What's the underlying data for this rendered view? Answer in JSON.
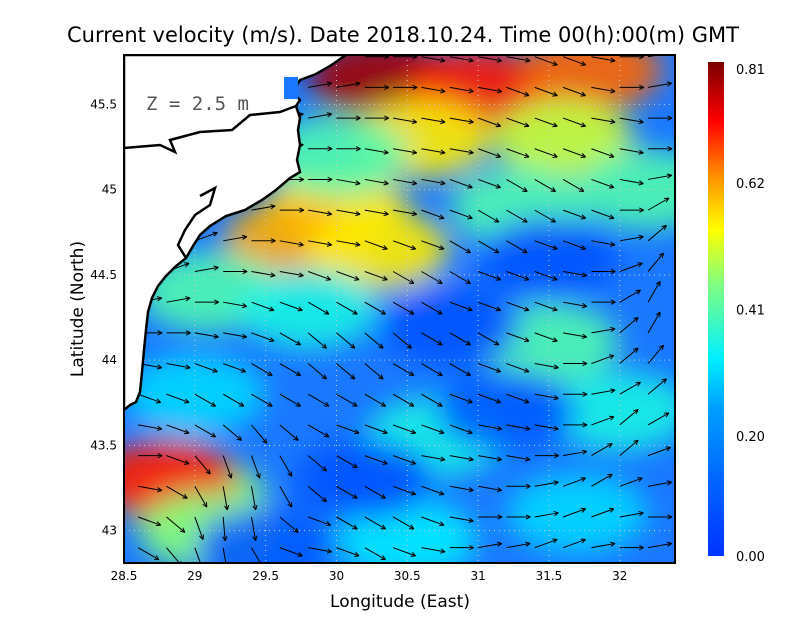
{
  "chart_data": {
    "type": "heatmap",
    "title": "Current velocity (m/s). Date 2018.10.24. Time 00(h):00(m) GMT",
    "xlabel": "Longitude (East)",
    "ylabel": "Latitude (North)",
    "annotation": "Z = 2.5 m",
    "xlim": [
      28.5,
      32.39
    ],
    "ylim": [
      42.81,
      45.79
    ],
    "xticks": [
      28.5,
      29,
      29.5,
      30,
      30.5,
      31,
      31.5,
      32
    ],
    "xtick_labels": [
      "28.5",
      "29",
      "29.5",
      "30",
      "30.5",
      "31",
      "31.5",
      "32"
    ],
    "yticks": [
      43,
      43.5,
      44,
      44.5,
      45,
      45.5
    ],
    "ytick_labels": [
      "43",
      "43.5",
      "44",
      "44.5",
      "45",
      "45.5"
    ],
    "grid": true,
    "colorbar": {
      "range": [
        0,
        0.81
      ],
      "ticks": [
        0.81,
        0.62,
        0.41,
        0.2,
        0.0
      ],
      "tick_labels": [
        "0.81",
        "0.62",
        "0.41",
        "0.20",
        "0.00"
      ],
      "colors": [
        "#0033ff",
        "#0080ff",
        "#00e5ff",
        "#7fff7f",
        "#ffff00",
        "#ff8000",
        "#ff0000",
        "#800000"
      ]
    },
    "speed_regions": [
      {
        "lon": 30.3,
        "lat": 45.65,
        "value": 0.78
      },
      {
        "lon": 31.0,
        "lat": 45.6,
        "value": 0.7
      },
      {
        "lon": 31.8,
        "lat": 45.7,
        "value": 0.65
      },
      {
        "lon": 30.6,
        "lat": 45.3,
        "value": 0.55
      },
      {
        "lon": 31.6,
        "lat": 45.3,
        "value": 0.5
      },
      {
        "lon": 30.0,
        "lat": 44.9,
        "value": 0.55
      },
      {
        "lon": 29.7,
        "lat": 44.7,
        "value": 0.6
      },
      {
        "lon": 30.3,
        "lat": 44.65,
        "value": 0.55
      },
      {
        "lon": 31.3,
        "lat": 44.9,
        "value": 0.4
      },
      {
        "lon": 30.0,
        "lat": 45.2,
        "value": 0.4
      },
      {
        "lon": 32.2,
        "lat": 45.0,
        "value": 0.4
      },
      {
        "lon": 29.1,
        "lat": 44.4,
        "value": 0.4
      },
      {
        "lon": 29.8,
        "lat": 44.3,
        "value": 0.35
      },
      {
        "lon": 31.5,
        "lat": 44.1,
        "value": 0.4
      },
      {
        "lon": 32.0,
        "lat": 43.7,
        "value": 0.35
      },
      {
        "lon": 30.7,
        "lat": 43.55,
        "value": 0.35
      },
      {
        "lon": 29.0,
        "lat": 43.2,
        "value": 0.45
      },
      {
        "lon": 28.8,
        "lat": 43.3,
        "value": 0.7
      },
      {
        "lon": 29.1,
        "lat": 43.0,
        "value": 0.45
      },
      {
        "lon": 30.5,
        "lat": 42.95,
        "value": 0.32
      },
      {
        "lon": 31.7,
        "lat": 43.1,
        "value": 0.3
      },
      {
        "lon": 29.0,
        "lat": 43.8,
        "value": 0.3
      },
      {
        "lon": 31.5,
        "lat": 44.6,
        "value": 0.08
      },
      {
        "lon": 30.8,
        "lat": 44.2,
        "value": 0.08
      },
      {
        "lon": 30.2,
        "lat": 43.3,
        "value": 0.08
      },
      {
        "lon": 31.2,
        "lat": 43.7,
        "value": 0.1
      },
      {
        "lon": 29.5,
        "lat": 42.9,
        "value": 0.1
      }
    ],
    "vector_field": {
      "lon_start": 28.6,
      "lon_step": 0.2,
      "lat_start": 42.9,
      "lat_step": 0.18,
      "note_units": "direction degrees (0=east, counterclockwise), speed m/s",
      "direction_rows": [
        [
          -30,
          -50,
          -70,
          -80,
          -60,
          -20,
          -10,
          -20,
          -30,
          -20,
          -10,
          0,
          10,
          10,
          20,
          20,
          10,
          0,
          10,
          10
        ],
        [
          -20,
          -40,
          -70,
          -85,
          -80,
          -40,
          -20,
          -30,
          -30,
          -30,
          -20,
          -10,
          0,
          0,
          10,
          20,
          20,
          10,
          0,
          10
        ],
        [
          -10,
          -30,
          -60,
          -80,
          -80,
          -60,
          -40,
          -30,
          -30,
          -20,
          -20,
          -10,
          -10,
          0,
          10,
          20,
          30,
          20,
          10,
          10
        ],
        [
          0,
          -20,
          -50,
          -70,
          -70,
          -60,
          -40,
          -30,
          -20,
          -20,
          -10,
          -10,
          -10,
          -10,
          0,
          10,
          30,
          40,
          20,
          10
        ],
        [
          -10,
          -20,
          -30,
          -40,
          -50,
          -40,
          -30,
          -20,
          -20,
          -20,
          -20,
          -20,
          -10,
          -10,
          -10,
          0,
          20,
          40,
          30,
          20
        ],
        [
          -20,
          -20,
          -30,
          -30,
          -30,
          -30,
          -30,
          -30,
          -30,
          -30,
          -30,
          -20,
          -20,
          -20,
          -10,
          0,
          10,
          30,
          40,
          30
        ],
        [
          -10,
          -10,
          -20,
          -20,
          -30,
          -30,
          -40,
          -40,
          -40,
          -30,
          -30,
          -30,
          -20,
          -20,
          -10,
          0,
          20,
          40,
          50,
          40
        ],
        [
          0,
          0,
          -10,
          -10,
          -20,
          -30,
          -40,
          -40,
          -40,
          -40,
          -30,
          -30,
          -30,
          -20,
          -20,
          -10,
          10,
          40,
          60,
          50
        ],
        [
          10,
          10,
          0,
          -10,
          -20,
          -20,
          -30,
          -30,
          -30,
          -30,
          -30,
          -20,
          -20,
          -20,
          -20,
          -10,
          0,
          30,
          60,
          60
        ],
        [
          20,
          20,
          10,
          0,
          -10,
          -10,
          -20,
          -20,
          -20,
          -30,
          -30,
          -30,
          -20,
          -20,
          -20,
          -10,
          0,
          20,
          50,
          60
        ],
        [
          20,
          20,
          20,
          10,
          0,
          -10,
          -10,
          -10,
          -20,
          -20,
          -20,
          -30,
          -30,
          -30,
          -20,
          -20,
          -10,
          10,
          40,
          60
        ],
        [
          20,
          20,
          20,
          20,
          10,
          0,
          -10,
          -10,
          -10,
          -10,
          -20,
          -20,
          -30,
          -30,
          -30,
          -20,
          -20,
          0,
          30,
          50
        ],
        [
          20,
          20,
          20,
          20,
          10,
          0,
          0,
          -10,
          -10,
          -10,
          -10,
          -20,
          -20,
          -30,
          -30,
          -30,
          -20,
          -10,
          10,
          30
        ],
        [
          20,
          20,
          20,
          20,
          10,
          10,
          0,
          0,
          -10,
          -10,
          -10,
          -10,
          -20,
          -20,
          -20,
          -20,
          -20,
          -10,
          0,
          20
        ],
        [
          20,
          20,
          20,
          20,
          20,
          10,
          10,
          0,
          0,
          -10,
          -10,
          -10,
          -20,
          -20,
          -20,
          -20,
          -10,
          -10,
          0,
          10
        ],
        [
          20,
          20,
          20,
          20,
          20,
          20,
          10,
          10,
          0,
          0,
          -10,
          -10,
          -10,
          -20,
          -20,
          -20,
          -10,
          0,
          10,
          20
        ],
        [
          20,
          20,
          20,
          20,
          20,
          20,
          10,
          10,
          0,
          0,
          -10,
          -10,
          -10,
          -10,
          -20,
          -20,
          -10,
          0,
          10,
          30
        ]
      ]
    }
  }
}
